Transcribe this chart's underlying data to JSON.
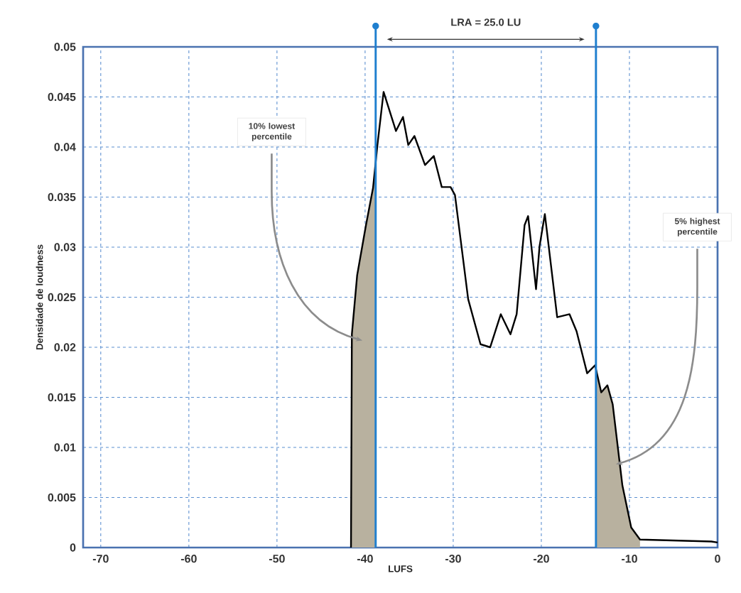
{
  "chart_data": {
    "type": "line",
    "xlabel": "LUFS",
    "ylabel": "Densidade de loudness",
    "series": [
      {
        "type": "area",
        "color": "#b8b19f",
        "x": [
          -41.6,
          -41.5,
          -40.9,
          -39.9,
          -39.1,
          -38.8
        ],
        "values": [
          0,
          0.0213,
          0.0272,
          0.0322,
          0.0359,
          0.0385
        ]
      },
      {
        "type": "area",
        "color": "#b8b19f",
        "x": [
          -13.8,
          -13.2,
          -12.5,
          -11.9,
          -10.8,
          -9.8,
          -8.8
        ],
        "values": [
          0.0178,
          0.0155,
          0.0162,
          0.0143,
          0.0062,
          0.002,
          0.0008
        ]
      },
      {
        "color": "#000000",
        "x": [
          -41.6,
          -41.5,
          -40.9,
          -39.9,
          -39.1,
          -38.6,
          -37.9,
          -36.5,
          -35.7,
          -35.1,
          -34.4,
          -33.2,
          -32.2,
          -31.3,
          -30.3,
          -29.8,
          -28.3,
          -26.9,
          -25.8,
          -24.6,
          -23.5,
          -22.8,
          -21.9,
          -21.5,
          -20.6,
          -20.2,
          -19.6,
          -18.2,
          -16.8,
          -16.0,
          -14.8,
          -13.9,
          -13.2,
          -12.5,
          -11.9,
          -10.8,
          -9.8,
          -8.8,
          -0.7,
          0
        ],
        "values": [
          0,
          0.0213,
          0.0272,
          0.0322,
          0.0359,
          0.0402,
          0.0455,
          0.0416,
          0.043,
          0.0402,
          0.0411,
          0.0382,
          0.0391,
          0.036,
          0.036,
          0.0352,
          0.0248,
          0.0203,
          0.02,
          0.0233,
          0.0213,
          0.0233,
          0.0322,
          0.0331,
          0.0258,
          0.0301,
          0.0333,
          0.023,
          0.0233,
          0.0216,
          0.0174,
          0.0182,
          0.0155,
          0.0162,
          0.0143,
          0.0062,
          0.002,
          0.0008,
          0.0006,
          0.0005
        ]
      }
    ],
    "xlim": [
      -72,
      0
    ],
    "ylim": [
      0,
      0.05
    ],
    "xticks": [
      -70,
      -60,
      -50,
      -40,
      -30,
      -20,
      -10,
      0
    ],
    "yticks": [
      0,
      0.005,
      0.01,
      0.015,
      0.02,
      0.025,
      0.03,
      0.035,
      0.04,
      0.045,
      0.05
    ],
    "grid": true,
    "ref_lines": [
      {
        "axis": "x",
        "value": -38.8,
        "color": "#1f7fcf"
      },
      {
        "axis": "x",
        "value": -13.8,
        "color": "#1f7fcf"
      }
    ],
    "annotations": [
      "LRA = 25.0 LU",
      "10% lowest percentile",
      "5% highest percentile"
    ]
  }
}
